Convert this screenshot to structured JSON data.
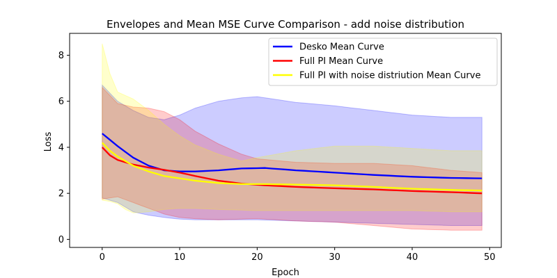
{
  "chart_data": {
    "type": "line",
    "title": "Envelopes and Mean MSE Curve Comparison - add noise distribution",
    "xlabel": "Epoch",
    "ylabel": "Loss",
    "xlim": [
      -4.2,
      51.5
    ],
    "ylim": [
      -0.35,
      8.95
    ],
    "xticks": [
      0,
      10,
      20,
      30,
      40,
      50
    ],
    "yticks": [
      0,
      2,
      4,
      6,
      8
    ],
    "grid": false,
    "legend_placement": "top-right",
    "x_points": [
      0,
      1,
      2,
      3,
      4,
      5,
      6,
      7,
      8,
      9,
      10,
      11,
      12,
      13,
      14,
      15,
      16,
      17,
      18,
      19,
      20,
      21,
      22,
      23,
      24,
      25,
      26,
      27,
      28,
      29,
      30,
      31,
      32,
      33,
      34,
      35,
      36,
      37,
      38,
      39,
      40,
      41,
      42,
      43,
      44,
      45,
      46,
      47,
      48,
      49
    ],
    "series": [
      {
        "name": "Desko Mean Curve",
        "color": "#0000ff",
        "mean_x": [
          0,
          2,
          4,
          6,
          8,
          10,
          12,
          15,
          18,
          21,
          25,
          30,
          35,
          40,
          45,
          49
        ],
        "mean_y": [
          4.6,
          4.05,
          3.55,
          3.2,
          3.0,
          2.95,
          2.95,
          3.0,
          3.08,
          3.1,
          3.0,
          2.9,
          2.8,
          2.72,
          2.67,
          2.65
        ],
        "upper_x": [
          0,
          2,
          4,
          6,
          8,
          10,
          12,
          15,
          18,
          20,
          22,
          25,
          30,
          35,
          40,
          45,
          49
        ],
        "upper_y": [
          6.7,
          6.0,
          5.6,
          5.3,
          5.2,
          5.4,
          5.7,
          6.0,
          6.15,
          6.2,
          6.1,
          5.95,
          5.8,
          5.6,
          5.4,
          5.3,
          5.3
        ],
        "lower_x": [
          0,
          2,
          4,
          6,
          8,
          10,
          12,
          15,
          20,
          25,
          30,
          35,
          40,
          45,
          49
        ],
        "lower_y": [
          1.8,
          1.6,
          1.2,
          1.05,
          0.95,
          0.88,
          0.85,
          0.85,
          0.85,
          0.8,
          0.75,
          0.7,
          0.65,
          0.6,
          0.6
        ]
      },
      {
        "name": "Full PI Mean Curve",
        "color": "#ff0000",
        "mean_x": [
          0,
          1,
          2,
          4,
          6,
          8,
          10,
          12,
          15,
          18,
          21,
          25,
          30,
          35,
          40,
          45,
          49
        ],
        "mean_y": [
          4.0,
          3.65,
          3.45,
          3.25,
          3.12,
          3.02,
          2.9,
          2.75,
          2.55,
          2.42,
          2.35,
          2.28,
          2.22,
          2.17,
          2.1,
          2.05,
          2.0
        ],
        "upper_x": [
          0,
          2,
          4,
          6,
          8,
          10,
          12,
          15,
          18,
          20,
          25,
          30,
          35,
          40,
          45,
          49
        ],
        "upper_y": [
          6.6,
          5.9,
          5.75,
          5.7,
          5.55,
          5.2,
          4.7,
          4.15,
          3.7,
          3.5,
          3.35,
          3.3,
          3.3,
          3.2,
          3.0,
          2.9
        ],
        "lower_x": [
          0,
          2,
          4,
          6,
          8,
          10,
          12,
          15,
          18,
          20,
          25,
          30,
          35,
          40,
          45,
          49
        ],
        "lower_y": [
          1.75,
          1.85,
          1.6,
          1.35,
          1.1,
          0.95,
          0.9,
          0.85,
          0.88,
          0.9,
          0.8,
          0.75,
          0.6,
          0.45,
          0.4,
          0.4
        ]
      },
      {
        "name": "Full PI with noise distriution Mean Curve",
        "color": "#ffff00",
        "mean_x": [
          0,
          1,
          2,
          4,
          6,
          8,
          10,
          12,
          15,
          18,
          21,
          25,
          30,
          35,
          40,
          45,
          49
        ],
        "mean_y": [
          4.2,
          3.85,
          3.6,
          3.2,
          2.95,
          2.75,
          2.65,
          2.55,
          2.45,
          2.4,
          2.4,
          2.38,
          2.35,
          2.28,
          2.2,
          2.15,
          2.12
        ],
        "upper_x": [
          0,
          1,
          2,
          4,
          6,
          8,
          10,
          12,
          15,
          18,
          20,
          25,
          30,
          35,
          40,
          45,
          49
        ],
        "upper_y": [
          8.5,
          7.2,
          6.4,
          6.1,
          5.6,
          5.0,
          4.5,
          4.1,
          3.7,
          3.4,
          3.55,
          3.85,
          4.05,
          4.05,
          3.95,
          3.85,
          3.85
        ],
        "lower_x": [
          0,
          1,
          2,
          3,
          4,
          6,
          8,
          10,
          12,
          15,
          20,
          25,
          30,
          35,
          40,
          45,
          49
        ],
        "lower_y": [
          1.7,
          1.65,
          1.55,
          1.3,
          1.15,
          1.2,
          1.3,
          1.35,
          1.35,
          1.3,
          1.25,
          1.25,
          1.25,
          1.25,
          1.25,
          1.2,
          1.2
        ]
      }
    ],
    "envelope_colors": [
      "#0000ff",
      "#ff0000",
      "#ffff00"
    ]
  }
}
